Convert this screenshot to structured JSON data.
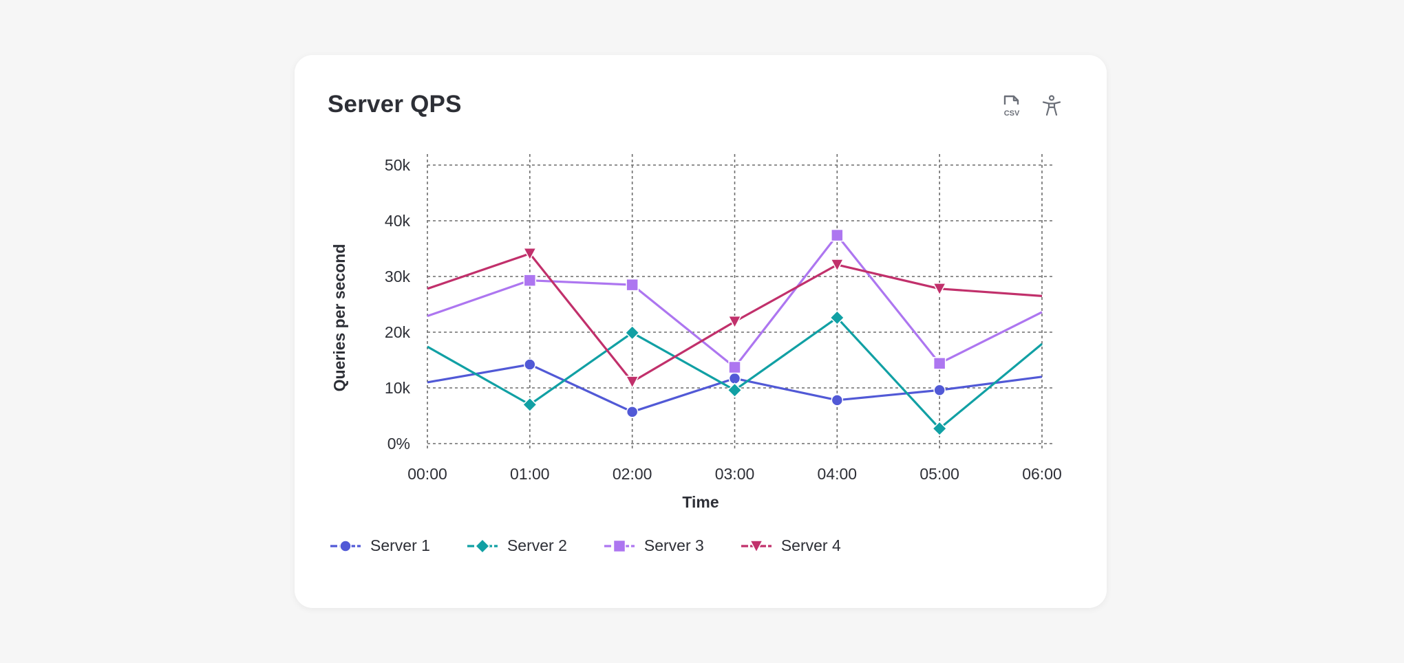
{
  "card": {
    "title": "Server QPS",
    "actions": [
      {
        "name": "download-csv",
        "icon": "csv-file-icon",
        "label": "CSV"
      },
      {
        "name": "accessibility",
        "icon": "accessibility-icon"
      }
    ]
  },
  "chart_data": {
    "type": "line",
    "xlabel": "Time",
    "ylabel": "Queries per second",
    "categories": [
      "00:00",
      "01:00",
      "02:00",
      "03:00",
      "04:00",
      "05:00",
      "06:00"
    ],
    "ylim": [
      0,
      50000
    ],
    "yticks": [
      0,
      10000,
      20000,
      30000,
      40000,
      50000
    ],
    "ytick_labels": [
      "0%",
      "10k",
      "20k",
      "30k",
      "40k",
      "50k"
    ],
    "grid": true,
    "legend_position": "bottom",
    "series": [
      {
        "name": "Server 1",
        "color": "#5159d6",
        "marker": "circle",
        "values": [
          11000,
          14200,
          5700,
          11700,
          7800,
          9600,
          12000
        ]
      },
      {
        "name": "Server 2",
        "color": "#11a0a4",
        "marker": "diamond",
        "values": [
          17400,
          7000,
          19900,
          9600,
          22600,
          2700,
          17900
        ]
      },
      {
        "name": "Server 3",
        "color": "#ad76f0",
        "marker": "square",
        "values": [
          22900,
          29300,
          28500,
          13700,
          37400,
          14400,
          23600
        ]
      },
      {
        "name": "Server 4",
        "color": "#c1306b",
        "marker": "triangle-down",
        "values": [
          27800,
          34100,
          11100,
          21900,
          32100,
          27800,
          26500
        ]
      }
    ]
  }
}
